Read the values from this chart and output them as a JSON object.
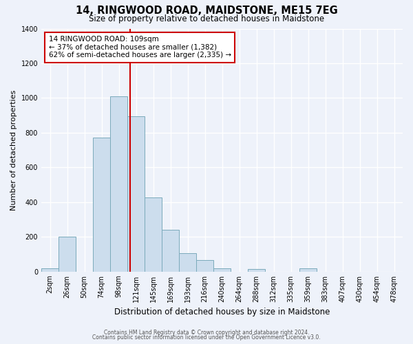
{
  "title": "14, RINGWOOD ROAD, MAIDSTONE, ME15 7EG",
  "subtitle": "Size of property relative to detached houses in Maidstone",
  "xlabel": "Distribution of detached houses by size in Maidstone",
  "ylabel": "Number of detached properties",
  "bar_color": "#ccdded",
  "bar_edge_color": "#7aaabb",
  "background_color": "#eef2fa",
  "grid_color": "#ffffff",
  "bin_labels": [
    "2sqm",
    "26sqm",
    "50sqm",
    "74sqm",
    "98sqm",
    "121sqm",
    "145sqm",
    "169sqm",
    "193sqm",
    "216sqm",
    "240sqm",
    "264sqm",
    "288sqm",
    "312sqm",
    "335sqm",
    "359sqm",
    "383sqm",
    "407sqm",
    "430sqm",
    "454sqm",
    "478sqm"
  ],
  "values": [
    20,
    200,
    0,
    770,
    1010,
    895,
    425,
    240,
    105,
    65,
    20,
    0,
    15,
    0,
    0,
    20,
    0,
    0,
    0,
    0,
    0
  ],
  "property_size_idx": 4.65,
  "vline_color": "#cc0000",
  "annotation_box_color": "#ffffff",
  "annotation_box_edge": "#cc0000",
  "annotation_text_line1": "14 RINGWOOD ROAD: 109sqm",
  "annotation_text_line2": "← 37% of detached houses are smaller (1,382)",
  "annotation_text_line3": "62% of semi-detached houses are larger (2,335) →",
  "ylim": [
    0,
    1400
  ],
  "yticks": [
    0,
    200,
    400,
    600,
    800,
    1000,
    1200,
    1400
  ],
  "footer_line1": "Contains HM Land Registry data © Crown copyright and database right 2024.",
  "footer_line2": "Contains public sector information licensed under the Open Government Licence v3.0."
}
